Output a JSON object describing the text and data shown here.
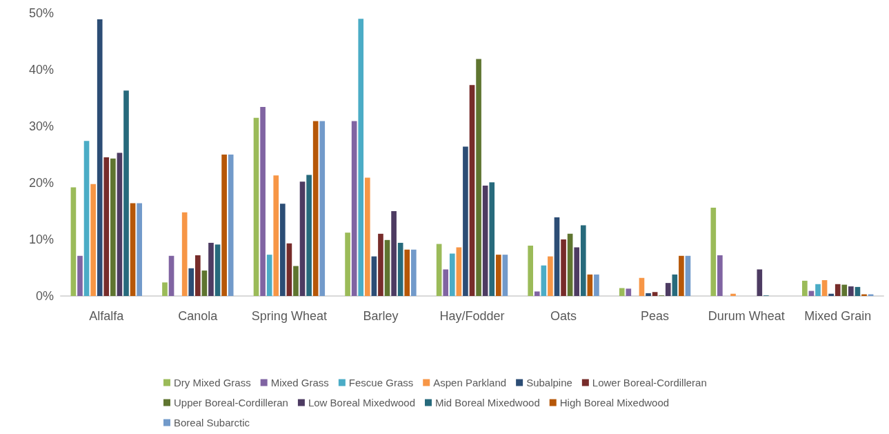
{
  "chart_data": {
    "type": "bar",
    "categories": [
      "Alfalfa",
      "Canola",
      "Spring Wheat",
      "Barley",
      "Hay/Fodder",
      "Oats",
      "Peas",
      "Durum Wheat",
      "Mixed Grain"
    ],
    "series": [
      {
        "name": "Dry Mixed Grass",
        "color": "#9bbb59",
        "values": [
          19.2,
          2.4,
          31.5,
          11.2,
          9.2,
          8.9,
          1.4,
          15.6,
          2.7
        ]
      },
      {
        "name": "Mixed Grass",
        "color": "#8064a2",
        "values": [
          7.1,
          7.1,
          33.4,
          30.9,
          4.7,
          0.8,
          1.3,
          7.2,
          0.9
        ]
      },
      {
        "name": "Fescue Grass",
        "color": "#4bacc6",
        "values": [
          27.4,
          0,
          7.3,
          49.0,
          7.5,
          5.4,
          0,
          0,
          2.1
        ]
      },
      {
        "name": "Aspen Parkland",
        "color": "#f79646",
        "values": [
          19.8,
          14.8,
          21.3,
          20.9,
          8.6,
          7.0,
          3.2,
          0.4,
          2.8
        ]
      },
      {
        "name": "Subalpine",
        "color": "#2c4d75",
        "values": [
          48.9,
          4.9,
          16.3,
          7.0,
          26.4,
          13.9,
          0.5,
          0,
          0.4
        ]
      },
      {
        "name": "Lower Boreal-Cordilleran",
        "color": "#772c2a",
        "values": [
          24.5,
          7.2,
          9.3,
          11.0,
          37.3,
          10.0,
          0.7,
          0,
          2.1
        ]
      },
      {
        "name": "Upper Boreal-Cordilleran",
        "color": "#5f7530",
        "values": [
          24.3,
          4.5,
          5.3,
          9.9,
          41.9,
          11.0,
          0.1,
          0,
          2.0
        ]
      },
      {
        "name": "Low Boreal Mixedwood",
        "color": "#4d3b62",
        "values": [
          25.3,
          9.4,
          20.2,
          15.0,
          19.5,
          8.6,
          2.3,
          4.7,
          1.7
        ]
      },
      {
        "name": "Mid Boreal Mixedwood",
        "color": "#276a7c",
        "values": [
          36.3,
          9.1,
          21.4,
          9.4,
          20.1,
          12.5,
          3.8,
          0.1,
          1.6
        ]
      },
      {
        "name": "High Boreal Mixedwood",
        "color": "#b65708",
        "values": [
          16.4,
          25.0,
          30.9,
          8.2,
          7.3,
          3.8,
          7.1,
          0,
          0.3
        ]
      },
      {
        "name": "Boreal Subarctic",
        "color": "#729aca",
        "values": [
          16.4,
          25.0,
          30.9,
          8.2,
          7.3,
          3.8,
          7.1,
          0,
          0.3
        ]
      }
    ],
    "ylim": [
      0,
      50
    ],
    "yticks": [
      {
        "value": 0,
        "label": "0%"
      },
      {
        "value": 10,
        "label": "10%"
      },
      {
        "value": 20,
        "label": "20%"
      },
      {
        "value": 30,
        "label": "30%"
      },
      {
        "value": 40,
        "label": "40%"
      },
      {
        "value": 50,
        "label": "50%"
      }
    ],
    "grid": false,
    "legend": "bottom"
  }
}
